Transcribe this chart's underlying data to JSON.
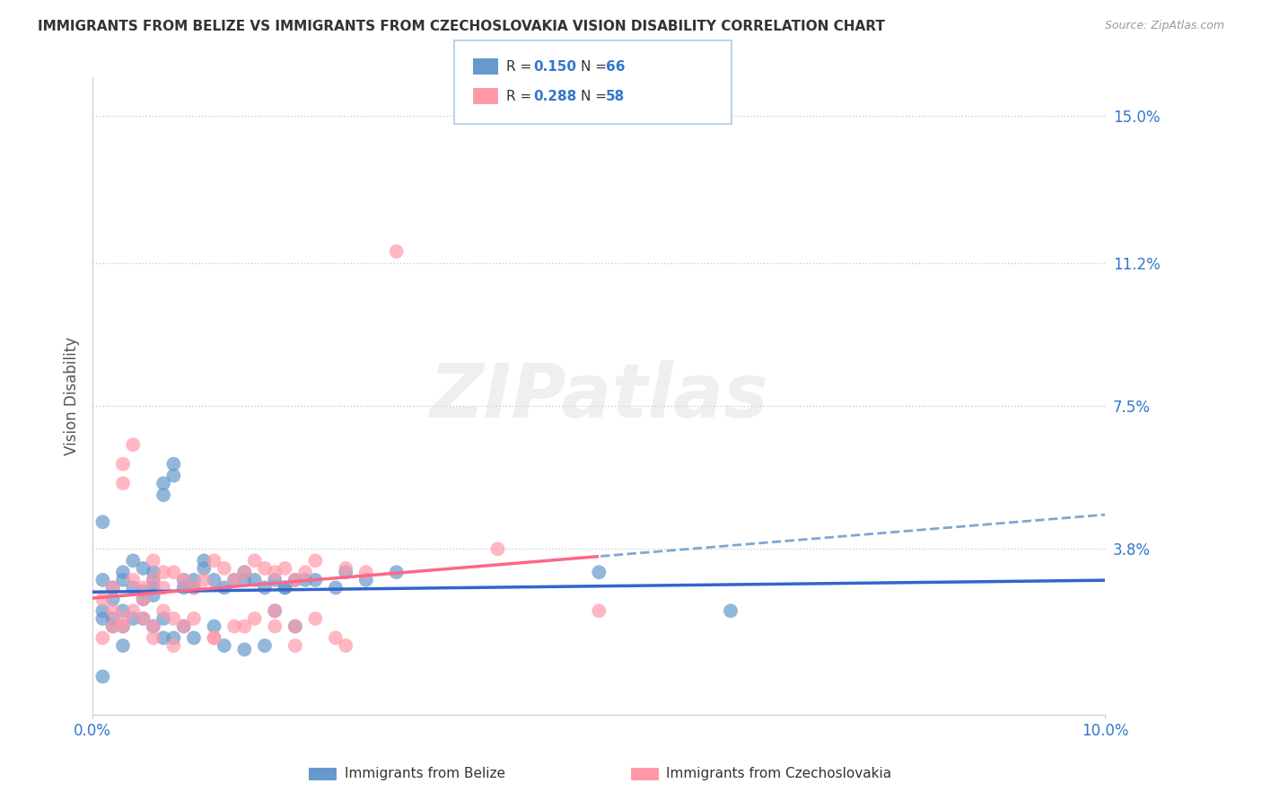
{
  "title": "IMMIGRANTS FROM BELIZE VS IMMIGRANTS FROM CZECHOSLOVAKIA VISION DISABILITY CORRELATION CHART",
  "source": "Source: ZipAtlas.com",
  "ylabel": "Vision Disability",
  "xlim": [
    0.0,
    0.1
  ],
  "ylim": [
    -0.005,
    0.16
  ],
  "ytick_vals": [
    0.038,
    0.075,
    0.112,
    0.15
  ],
  "ytick_labels": [
    "3.8%",
    "7.5%",
    "11.2%",
    "15.0%"
  ],
  "xtick_vals": [
    0.0,
    0.1
  ],
  "xtick_labels": [
    "0.0%",
    "10.0%"
  ],
  "belize_R": 0.15,
  "belize_N": 66,
  "czech_R": 0.288,
  "czech_N": 58,
  "belize_color": "#6699CC",
  "czech_color": "#FF99AA",
  "belize_line_color": "#3366CC",
  "czech_line_color": "#FF6688",
  "dash_line_color": "#6699CC",
  "background_color": "#FFFFFF",
  "grid_color": "#CCCCCC",
  "belize_x": [
    0.001,
    0.002,
    0.002,
    0.003,
    0.003,
    0.004,
    0.004,
    0.005,
    0.005,
    0.005,
    0.006,
    0.006,
    0.006,
    0.006,
    0.007,
    0.007,
    0.008,
    0.008,
    0.009,
    0.009,
    0.01,
    0.01,
    0.011,
    0.011,
    0.012,
    0.013,
    0.014,
    0.015,
    0.015,
    0.016,
    0.017,
    0.018,
    0.019,
    0.02,
    0.021,
    0.022,
    0.024,
    0.025,
    0.027,
    0.03,
    0.001,
    0.001,
    0.002,
    0.002,
    0.003,
    0.003,
    0.004,
    0.005,
    0.006,
    0.007,
    0.007,
    0.008,
    0.009,
    0.01,
    0.012,
    0.013,
    0.015,
    0.017,
    0.019,
    0.05,
    0.063,
    0.001,
    0.003,
    0.001,
    0.018,
    0.02
  ],
  "belize_y": [
    0.03,
    0.028,
    0.025,
    0.032,
    0.03,
    0.028,
    0.035,
    0.033,
    0.027,
    0.025,
    0.03,
    0.028,
    0.026,
    0.032,
    0.055,
    0.052,
    0.06,
    0.057,
    0.03,
    0.028,
    0.03,
    0.028,
    0.035,
    0.033,
    0.03,
    0.028,
    0.03,
    0.032,
    0.03,
    0.03,
    0.028,
    0.03,
    0.028,
    0.03,
    0.03,
    0.03,
    0.028,
    0.032,
    0.03,
    0.032,
    0.022,
    0.02,
    0.018,
    0.02,
    0.022,
    0.018,
    0.02,
    0.02,
    0.018,
    0.02,
    0.015,
    0.015,
    0.018,
    0.015,
    0.018,
    0.013,
    0.012,
    0.013,
    0.028,
    0.032,
    0.022,
    0.005,
    0.013,
    0.045,
    0.022,
    0.018
  ],
  "czech_x": [
    0.001,
    0.002,
    0.002,
    0.003,
    0.003,
    0.004,
    0.004,
    0.005,
    0.005,
    0.006,
    0.006,
    0.007,
    0.007,
    0.008,
    0.009,
    0.01,
    0.011,
    0.012,
    0.013,
    0.014,
    0.015,
    0.016,
    0.017,
    0.018,
    0.019,
    0.02,
    0.021,
    0.022,
    0.025,
    0.027,
    0.001,
    0.002,
    0.003,
    0.004,
    0.005,
    0.006,
    0.007,
    0.008,
    0.009,
    0.01,
    0.012,
    0.014,
    0.016,
    0.018,
    0.02,
    0.022,
    0.024,
    0.025,
    0.03,
    0.003,
    0.006,
    0.008,
    0.012,
    0.015,
    0.018,
    0.02,
    0.04,
    0.05
  ],
  "czech_y": [
    0.025,
    0.022,
    0.028,
    0.06,
    0.055,
    0.03,
    0.065,
    0.028,
    0.025,
    0.03,
    0.035,
    0.032,
    0.028,
    0.032,
    0.03,
    0.028,
    0.03,
    0.035,
    0.033,
    0.03,
    0.032,
    0.035,
    0.033,
    0.032,
    0.033,
    0.03,
    0.032,
    0.035,
    0.033,
    0.032,
    0.015,
    0.018,
    0.02,
    0.022,
    0.02,
    0.018,
    0.022,
    0.02,
    0.018,
    0.02,
    0.015,
    0.018,
    0.02,
    0.022,
    0.018,
    0.02,
    0.015,
    0.013,
    0.115,
    0.018,
    0.015,
    0.013,
    0.015,
    0.018,
    0.018,
    0.013,
    0.038,
    0.022
  ]
}
